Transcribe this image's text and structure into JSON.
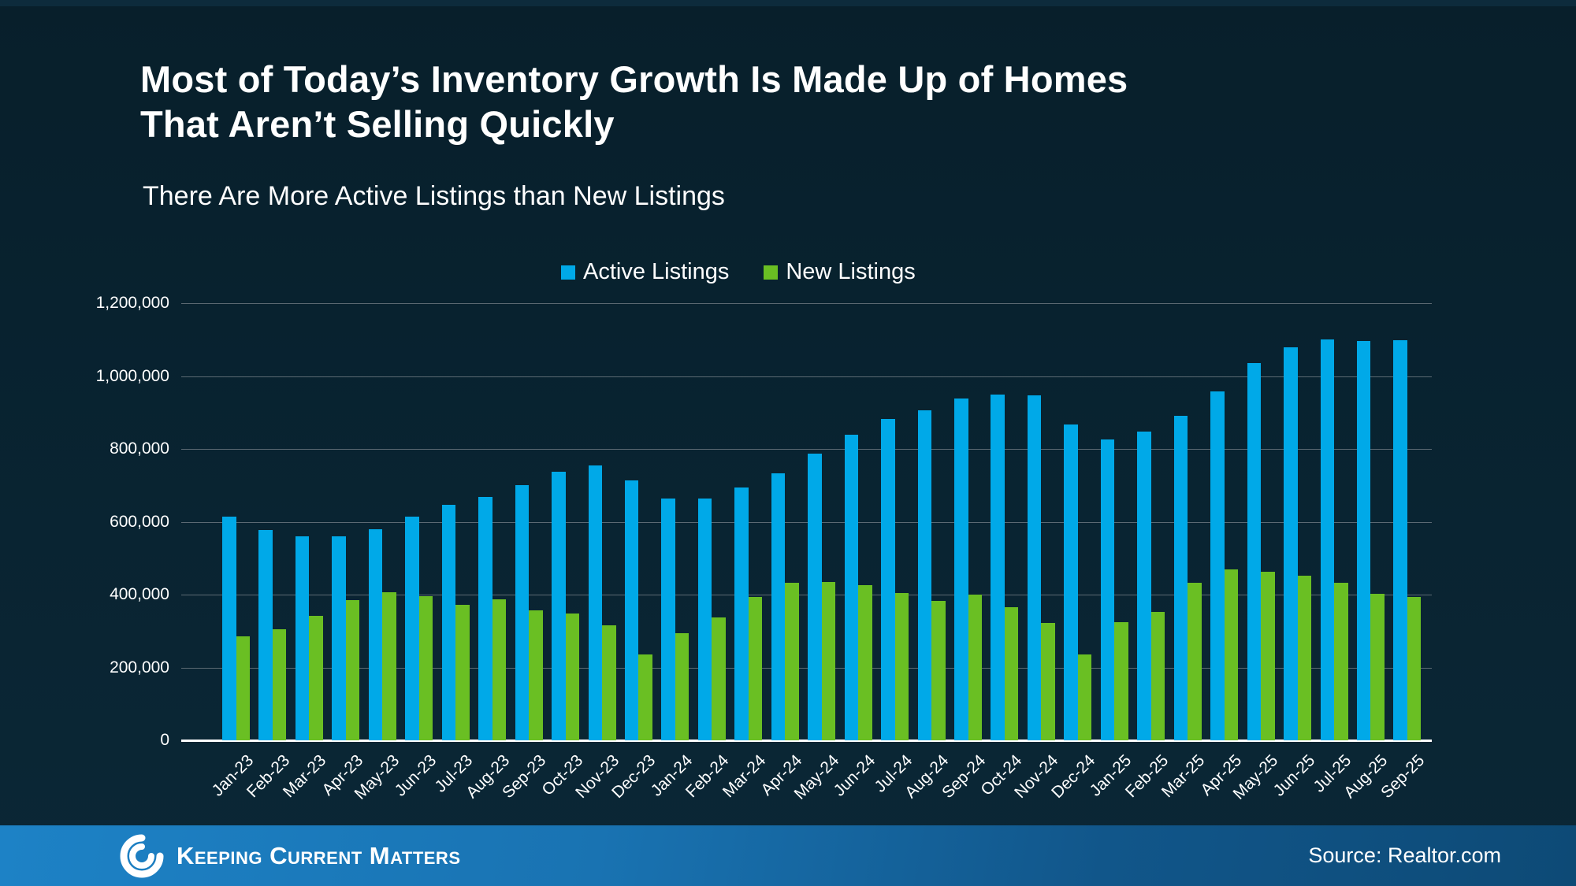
{
  "header": {
    "title_line1": "Most of Today’s Inventory Growth Is Made Up of Homes",
    "title_line2": "That Aren’t Selling Quickly",
    "subtitle": "There Are More Active Listings than New Listings"
  },
  "footer": {
    "brand": "Keeping Current Matters",
    "source": "Source: Realtor.com"
  },
  "colors": {
    "background": "#08222f",
    "active_blue": "#00a9e8",
    "new_green": "#6abf23",
    "gridline": "#5c6a73",
    "footer_gradient_left": "#1d82c6",
    "footer_gradient_right": "#0d4a76",
    "text": "#ffffff"
  },
  "chart_data": {
    "type": "bar",
    "title": "Most of Today’s Inventory Growth Is Made Up of Homes That Aren’t Selling Quickly",
    "subtitle": "There Are More Active Listings than New Listings",
    "xlabel": "",
    "ylabel": "",
    "grid": true,
    "legend_position": "top-center",
    "ylim": [
      0,
      1200000
    ],
    "ytick_step": 200000,
    "yticks": [
      {
        "value": 0,
        "label": "0"
      },
      {
        "value": 200000,
        "label": "200,000"
      },
      {
        "value": 400000,
        "label": "400,000"
      },
      {
        "value": 600000,
        "label": "600,000"
      },
      {
        "value": 800000,
        "label": "800,000"
      },
      {
        "value": 1000000,
        "label": "1,000,000"
      },
      {
        "value": 1200000,
        "label": "1,200,000"
      }
    ],
    "categories": [
      "Jan-23",
      "Feb-23",
      "Mar-23",
      "Apr-23",
      "May-23",
      "Jun-23",
      "Jul-23",
      "Aug-23",
      "Sep-23",
      "Oct-23",
      "Nov-23",
      "Dec-23",
      "Jan-24",
      "Feb-24",
      "Mar-24",
      "Apr-24",
      "May-24",
      "Jun-24",
      "Jul-24",
      "Aug-24",
      "Sep-24",
      "Oct-24",
      "Nov-24",
      "Dec-24",
      "Jan-25",
      "Feb-25",
      "Mar-25",
      "Apr-25",
      "May-25",
      "Jun-25",
      "Jul-25",
      "Aug-25",
      "Sep-25"
    ],
    "series": [
      {
        "name": "Active Listings",
        "color": "#00a9e8",
        "values": [
          615000,
          578000,
          560000,
          560000,
          579000,
          614000,
          646000,
          668000,
          700000,
          737000,
          754000,
          714000,
          664000,
          663000,
          695000,
          734000,
          788000,
          839000,
          882000,
          905000,
          938000,
          950000,
          948000,
          867000,
          827000,
          847000,
          890000,
          957000,
          1035000,
          1080000,
          1101000,
          1096000,
          1099000
        ]
      },
      {
        "name": "New Listings",
        "color": "#6abf23",
        "values": [
          285000,
          305000,
          341000,
          384000,
          406000,
          395000,
          373000,
          386000,
          357000,
          348000,
          315000,
          235000,
          294000,
          337000,
          394000,
          433000,
          435000,
          425000,
          404000,
          382000,
          399000,
          366000,
          323000,
          235000,
          325000,
          352000,
          433000,
          469000,
          463000,
          451000,
          433000,
          402000,
          393000
        ]
      }
    ]
  }
}
